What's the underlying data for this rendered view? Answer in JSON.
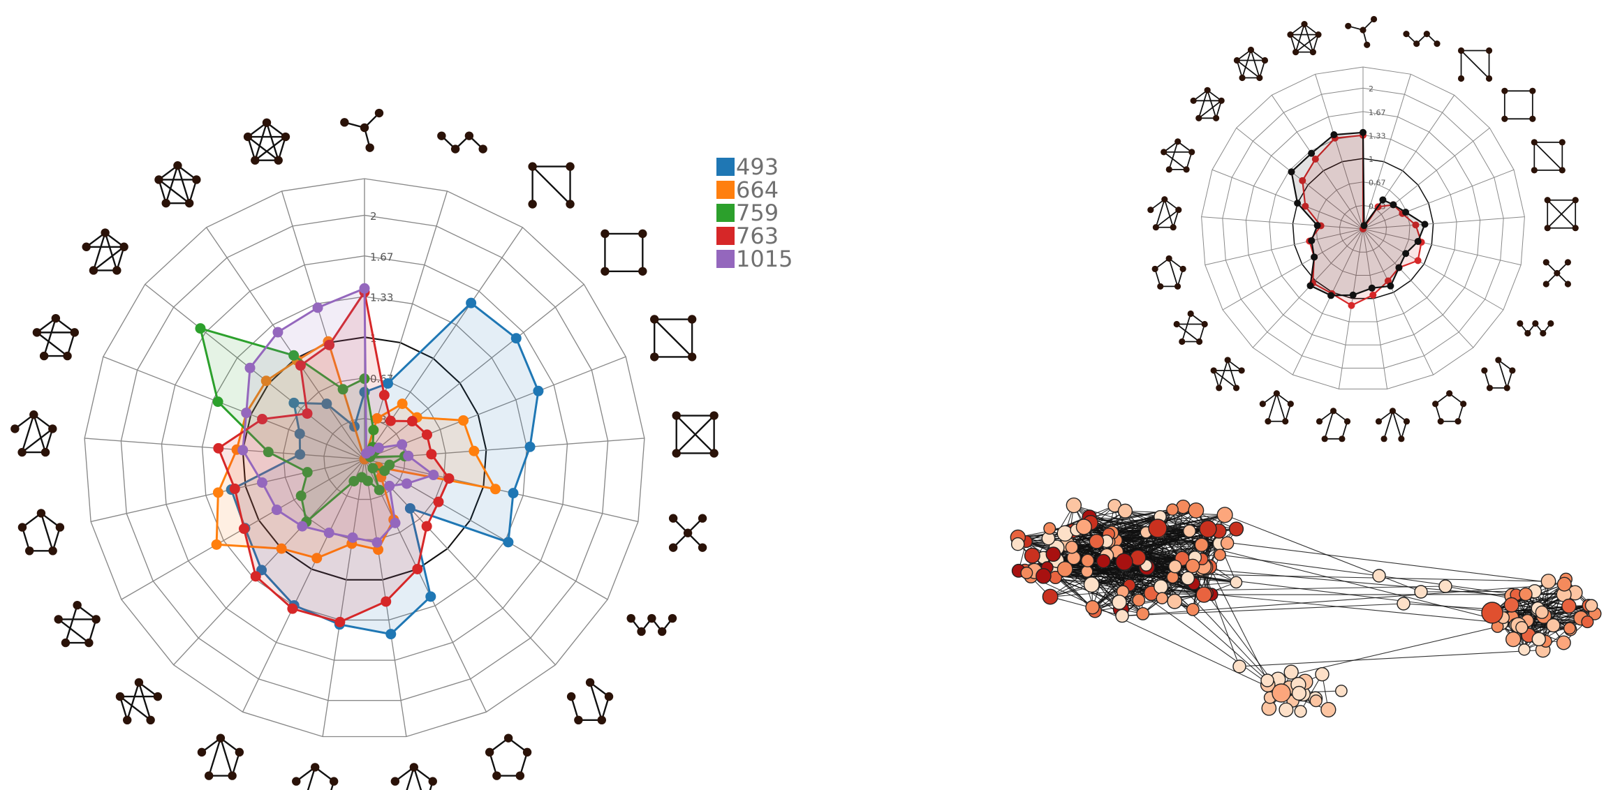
{
  "colors": {
    "grid": "#888888",
    "unit_circle": "#111111",
    "node_fill": "#2a1208",
    "edge": "#111111"
  },
  "graphlets": [
    [
      [
        0,
        0
      ],
      [
        0,
        1
      ],
      [
        0,
        2
      ],
      [
        0,
        3
      ]
    ],
    [
      [
        0,
        1
      ],
      [
        1,
        2
      ],
      [
        2,
        3
      ]
    ],
    [
      [
        0,
        1
      ],
      [
        0,
        2
      ],
      [
        0,
        3
      ],
      [
        1,
        2
      ]
    ],
    [
      [
        0,
        1
      ],
      [
        1,
        2
      ],
      [
        2,
        3
      ],
      [
        3,
        0
      ]
    ],
    [
      [
        0,
        1
      ],
      [
        1,
        2
      ],
      [
        2,
        3
      ],
      [
        3,
        0
      ],
      [
        0,
        2
      ]
    ],
    [
      [
        0,
        1
      ],
      [
        0,
        2
      ],
      [
        0,
        3
      ],
      [
        1,
        2
      ],
      [
        1,
        3
      ],
      [
        2,
        3
      ]
    ],
    [
      [
        0,
        1
      ],
      [
        0,
        2
      ],
      [
        0,
        3
      ],
      [
        0,
        4
      ]
    ],
    [
      [
        0,
        1
      ],
      [
        1,
        2
      ],
      [
        2,
        3
      ],
      [
        3,
        4
      ]
    ],
    [
      [
        0,
        1
      ],
      [
        1,
        2
      ],
      [
        2,
        0
      ],
      [
        2,
        3
      ],
      [
        3,
        4
      ]
    ],
    [
      [
        0,
        1
      ],
      [
        1,
        2
      ],
      [
        2,
        3
      ],
      [
        3,
        4
      ],
      [
        4,
        0
      ]
    ],
    [
      [
        0,
        1
      ],
      [
        1,
        2
      ],
      [
        2,
        0
      ],
      [
        0,
        3
      ],
      [
        0,
        4
      ]
    ],
    [
      [
        0,
        1
      ],
      [
        1,
        2
      ],
      [
        2,
        3
      ],
      [
        3,
        0
      ],
      [
        0,
        4
      ]
    ],
    [
      [
        0,
        1
      ],
      [
        1,
        2
      ],
      [
        2,
        3
      ],
      [
        3,
        0
      ],
      [
        0,
        2
      ],
      [
        0,
        4
      ]
    ],
    [
      [
        0,
        1
      ],
      [
        0,
        2
      ],
      [
        0,
        3
      ],
      [
        1,
        4
      ],
      [
        2,
        4
      ],
      [
        3,
        4
      ]
    ],
    [
      [
        0,
        1
      ],
      [
        1,
        2
      ],
      [
        2,
        3
      ],
      [
        3,
        0
      ],
      [
        1,
        4
      ],
      [
        2,
        4
      ]
    ],
    [
      [
        0,
        1
      ],
      [
        1,
        2
      ],
      [
        2,
        3
      ],
      [
        3,
        4
      ],
      [
        4,
        0
      ],
      [
        0,
        2
      ]
    ],
    [
      [
        0,
        1
      ],
      [
        1,
        2
      ],
      [
        2,
        3
      ],
      [
        3,
        0
      ],
      [
        0,
        2
      ],
      [
        1,
        3
      ],
      [
        0,
        4
      ]
    ],
    [
      [
        0,
        1
      ],
      [
        1,
        2
      ],
      [
        2,
        3
      ],
      [
        3,
        0
      ],
      [
        0,
        4
      ],
      [
        1,
        4
      ],
      [
        2,
        4
      ]
    ],
    [
      [
        0,
        1
      ],
      [
        1,
        2
      ],
      [
        2,
        3
      ],
      [
        3,
        0
      ],
      [
        0,
        2
      ],
      [
        1,
        3
      ],
      [
        0,
        4
      ],
      [
        1,
        4
      ]
    ],
    [
      [
        0,
        1
      ],
      [
        1,
        2
      ],
      [
        2,
        3
      ],
      [
        3,
        0
      ],
      [
        0,
        2
      ],
      [
        0,
        4
      ],
      [
        1,
        4
      ],
      [
        2,
        4
      ],
      [
        3,
        4
      ]
    ],
    [
      [
        0,
        1
      ],
      [
        0,
        2
      ],
      [
        0,
        3
      ],
      [
        0,
        4
      ],
      [
        1,
        2
      ],
      [
        1,
        3
      ],
      [
        1,
        4
      ],
      [
        2,
        3
      ],
      [
        2,
        4
      ],
      [
        3,
        4
      ]
    ]
  ],
  "chart_data": [
    {
      "type": "radar",
      "tick_labels": [
        "0.33",
        "0.67",
        "1",
        "1.33",
        "1.67",
        "2"
      ],
      "rmax": 2.3,
      "series": [
        {
          "name": "493",
          "color": "#1f77b4",
          "values": [
            0.55,
            0.65,
            1.55,
            1.59,
            1.53,
            1.36,
            1.25,
            1.36,
            0.55,
            1.25,
            1.45,
            1.37,
            1.33,
            1.24,
            1.13,
            1.12,
            0.53,
            0.57,
            0.74,
            0.55,
            0.28
          ]
        },
        {
          "name": "664",
          "color": "#ff7f0e",
          "values": [
            0.0,
            0.35,
            0.55,
            0.55,
            0.87,
            0.9,
            1.1,
            0.13,
            0.2,
            0.55,
            0.75,
            0.7,
            0.9,
            1.0,
            1.4,
            1.23,
            1.05,
            1.04,
            1.03,
            0.98,
            1.01
          ]
        },
        {
          "name": "759",
          "color": "#2ca02c",
          "values": [
            0.66,
            0.25,
            0.12,
            0.11,
            0.05,
            0.33,
            0.21,
            0.19,
            0.1,
            0.28,
            0.18,
            0.15,
            0.2,
            0.7,
            0.6,
            0.48,
            0.79,
            1.29,
            1.72,
            1.03,
            0.6
          ]
        },
        {
          "name": "763",
          "color": "#d62728",
          "values": [
            1.37,
            0.55,
            0.38,
            0.5,
            0.55,
            0.55,
            0.71,
            0.7,
            0.75,
            1.0,
            1.18,
            1.35,
            1.36,
            1.31,
            1.14,
            1.09,
            1.2,
            0.9,
            0.6,
            0.93,
            0.98
          ]
        },
        {
          "name": "1015",
          "color": "#9467bd",
          "values": [
            1.4,
            0.05,
            0.08,
            0.15,
            0.33,
            0.36,
            0.58,
            0.4,
            0.3,
            0.58,
            0.69,
            0.65,
            0.67,
            0.75,
            0.83,
            0.86,
            1.0,
            1.04,
            1.2,
            1.26,
            1.3
          ]
        }
      ]
    },
    {
      "type": "radar",
      "tick_labels": [
        "0.33",
        "0.67",
        "1",
        "1.33",
        "1.67",
        "2"
      ],
      "rmax": 2.3,
      "series": [
        {
          "color": "#d62728",
          "values": [
            1.33,
            0.0,
            0.38,
            0.55,
            0.6,
            0.75,
            0.85,
            0.9,
            0.75,
            0.82,
            0.95,
            1.1,
            1.02,
            1.05,
            0.8,
            0.78,
            0.6,
            0.88,
            1.1,
            1.2,
            1.35
          ]
        },
        {
          "color": "#111111",
          "values": [
            1.37,
            0.05,
            0.5,
            0.55,
            0.65,
            0.88,
            0.8,
            0.7,
            0.75,
            0.9,
            0.85,
            0.95,
            1.05,
            1.1,
            0.8,
            0.75,
            0.65,
            1.0,
            1.3,
            1.3,
            1.4
          ]
        }
      ]
    }
  ]
}
